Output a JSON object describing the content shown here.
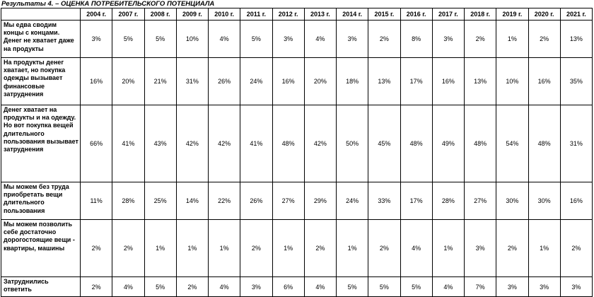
{
  "caption": "Результаты 4. – ОЦЕНКА ПОТРЕБИТЕЛЬСКОГО ПОТЕНЦИАЛА",
  "columns": [
    "2004 г.",
    "2007 г.",
    "2008 г.",
    "2009 г.",
    "2010 г.",
    "2011 г.",
    "2012 г.",
    "2013 г.",
    "2014 г.",
    "2015 г.",
    "2016 г.",
    "2017 г.",
    "2018 г.",
    "2019 г.",
    "2020 г.",
    "2021 г."
  ],
  "rows": [
    {
      "label": "Мы едва сводим концы с концами. Денег не хватает даже на продукты",
      "values": [
        "3%",
        "5%",
        "5%",
        "10%",
        "4%",
        "5%",
        "3%",
        "4%",
        "3%",
        "2%",
        "8%",
        "3%",
        "2%",
        "1%",
        "2%",
        "13%"
      ]
    },
    {
      "label": "На продукты денег хватает, но покупка одежды вызывает финансовые затруднения",
      "values": [
        "16%",
        "20%",
        "21%",
        "31%",
        "26%",
        "24%",
        "16%",
        "20%",
        "18%",
        "13%",
        "17%",
        "16%",
        "13%",
        "10%",
        "16%",
        "35%"
      ]
    },
    {
      "label": "Денег хватает на продукты и на одежду. Но вот покупка вещей длительного пользования вызывает затруднения",
      "values": [
        "66%",
        "41%",
        "43%",
        "42%",
        "42%",
        "41%",
        "48%",
        "42%",
        "50%",
        "45%",
        "48%",
        "49%",
        "48%",
        "54%",
        "48%",
        "31%"
      ]
    },
    {
      "label": "Мы можем без труда приобретать вещи длительного пользования",
      "values": [
        "11%",
        "28%",
        "25%",
        "14%",
        "22%",
        "26%",
        "27%",
        "29%",
        "24%",
        "33%",
        "17%",
        "28%",
        "27%",
        "30%",
        "30%",
        "16%"
      ]
    },
    {
      "label": "Мы можем позволить себе достаточно дорогостоящие вещи - квартиры, машины",
      "values": [
        "2%",
        "2%",
        "1%",
        "1%",
        "1%",
        "2%",
        "1%",
        "2%",
        "1%",
        "2%",
        "4%",
        "1%",
        "3%",
        "2%",
        "1%",
        "2%"
      ]
    },
    {
      "label": "Затруднились ответить",
      "values": [
        "2%",
        "4%",
        "5%",
        "2%",
        "4%",
        "3%",
        "6%",
        "4%",
        "5%",
        "5%",
        "5%",
        "4%",
        "7%",
        "3%",
        "3%",
        "3%"
      ]
    }
  ]
}
